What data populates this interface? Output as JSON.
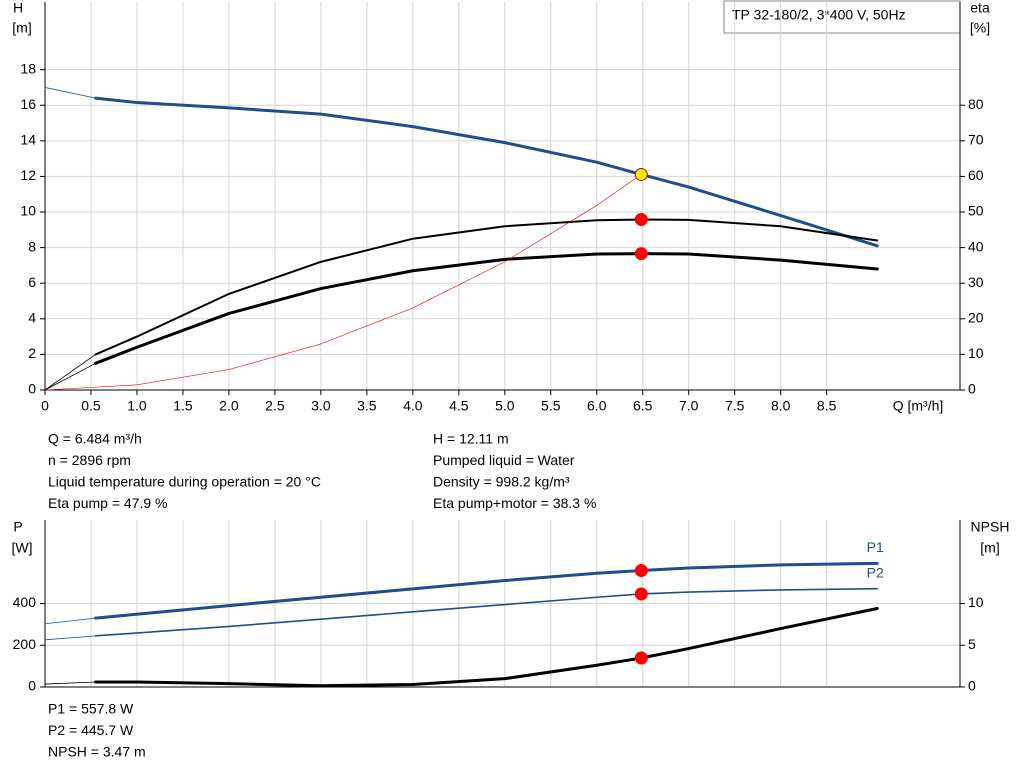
{
  "chart_data": [
    {
      "type": "line",
      "title": "TP 32-180/2, 3*400 V, 50Hz",
      "ylabel": [
        "H",
        "[m]"
      ],
      "y2label": [
        "eta",
        "[%]"
      ],
      "xlabel": "Q [m³/h]",
      "xlim": [
        0,
        9.95
      ],
      "ylim": [
        0,
        21.8
      ],
      "y2lim": [
        0,
        109
      ],
      "grid": true,
      "xticks": [
        0,
        0.5,
        {
          "value": 1,
          "label": "1.0"
        },
        1.5,
        {
          "value": 2,
          "label": "2.0"
        },
        2.5,
        {
          "value": 3,
          "label": "3.0"
        },
        3.5,
        {
          "value": 4,
          "label": "4.0"
        },
        4.5,
        {
          "value": 5,
          "label": "5.0"
        },
        5.5,
        {
          "value": 6,
          "label": "6.0"
        },
        6.5,
        {
          "value": 7,
          "label": "7.0"
        },
        7.5,
        {
          "value": 8,
          "label": "8.0"
        },
        8.5
      ],
      "yticks": [
        0,
        2,
        4,
        6,
        8,
        10,
        12,
        14,
        16,
        18
      ],
      "y2ticks": [
        0,
        10,
        20,
        30,
        40,
        50,
        60,
        70,
        80
      ],
      "series": [
        {
          "color": "#1f4e8c",
          "width": 0.8,
          "x": [
            0,
            0.55
          ],
          "values": [
            17,
            16.4
          ]
        },
        {
          "color": "#1f4e8c",
          "width": 3,
          "x": [
            0.55,
            1,
            2,
            3,
            4,
            5,
            6,
            6.484,
            7,
            8,
            9.05
          ],
          "values": [
            16.4,
            16.15,
            15.85,
            15.5,
            14.8,
            13.9,
            12.8,
            12.11,
            11.4,
            9.8,
            8.1
          ]
        },
        {
          "color": "#000000",
          "width": 0.8,
          "axis": "y2",
          "x": [
            0,
            0.55
          ],
          "values": [
            0,
            10
          ]
        },
        {
          "color": "#000000",
          "width": 2,
          "axis": "y2",
          "x": [
            0.55,
            1,
            2,
            3,
            4,
            5,
            6,
            6.484,
            7,
            8,
            9.05
          ],
          "values": [
            10,
            15,
            27,
            36,
            42.5,
            46,
            47.7,
            47.9,
            47.8,
            46,
            42
          ]
        },
        {
          "color": "#000000",
          "width": 0.8,
          "axis": "y2",
          "x": [
            0,
            0.55
          ],
          "values": [
            0,
            7.5
          ]
        },
        {
          "color": "#000000",
          "width": 3,
          "axis": "y2",
          "x": [
            0.55,
            1,
            2,
            3,
            4,
            5,
            6,
            6.484,
            7,
            8,
            9.05
          ],
          "values": [
            7.5,
            12,
            21.5,
            28.5,
            33.5,
            36.7,
            38.2,
            38.3,
            38.2,
            36.5,
            34
          ]
        },
        {
          "color": "#ff0000",
          "width": 0.6,
          "x": [
            0,
            1,
            2,
            3,
            4,
            5,
            6,
            6.484
          ],
          "values": [
            0,
            0.29,
            1.15,
            2.59,
            4.61,
            7.2,
            10.37,
            12.11
          ]
        },
        {
          "marker": true,
          "color": "#ffee00",
          "x": [
            6.484
          ],
          "values": [
            12.11
          ]
        },
        {
          "marker": true,
          "color": "#ff0000",
          "axis": "y2",
          "x": [
            6.484,
            6.484
          ],
          "values": [
            47.9,
            38.3
          ]
        }
      ]
    },
    {
      "type": "line",
      "ylabel": [
        "P",
        "[W]"
      ],
      "y2label": [
        "NPSH",
        "[m]"
      ],
      "xlim": [
        0,
        9.95
      ],
      "ylim": [
        0,
        800
      ],
      "y2lim": [
        0,
        20
      ],
      "grid": true,
      "yticks": [
        0,
        200,
        400
      ],
      "y2ticks": [
        0,
        5,
        10
      ],
      "series": [
        {
          "color": "#1f4e8c",
          "width": 0.8,
          "x": [
            0,
            0.55
          ],
          "values": [
            303,
            330
          ]
        },
        {
          "name": "P1",
          "color": "#1f4e8c",
          "width": 3,
          "x": [
            0.55,
            2,
            3,
            4,
            5,
            6,
            6.484,
            7,
            8,
            9.05
          ],
          "values": [
            330,
            390,
            430,
            470,
            510,
            545,
            557.8,
            570,
            585,
            592
          ]
        },
        {
          "color": "#1f4e8c",
          "width": 0.8,
          "x": [
            0,
            0.55
          ],
          "values": [
            226,
            245
          ]
        },
        {
          "name": "P2",
          "color": "#1f4e8c",
          "width": 1.6,
          "x": [
            0.55,
            2,
            3,
            4,
            5,
            6,
            6.484,
            7,
            8,
            9.05
          ],
          "values": [
            245,
            290,
            325,
            360,
            395,
            430,
            445.7,
            455,
            465,
            471
          ]
        },
        {
          "color": "#000000",
          "width": 0.8,
          "axis": "y2",
          "x": [
            0,
            0.55
          ],
          "values": [
            0.35,
            0.6
          ]
        },
        {
          "color": "#000000",
          "width": 3,
          "axis": "y2",
          "x": [
            0.55,
            1,
            2,
            3,
            4,
            5,
            6,
            6.484,
            7,
            8,
            9.05
          ],
          "values": [
            0.6,
            0.6,
            0.4,
            0.15,
            0.3,
            1.0,
            2.6,
            3.47,
            4.6,
            7,
            9.4
          ]
        },
        {
          "marker": true,
          "color": "#ff0000",
          "x": [
            6.484,
            6.484
          ],
          "values": [
            557.8,
            445.7
          ]
        },
        {
          "marker": true,
          "color": "#ff0000",
          "axis": "y2",
          "x": [
            6.484
          ],
          "values": [
            3.47
          ]
        }
      ]
    }
  ],
  "info": {
    "left": [
      "Q = 6.484 m³/h",
      "n = 2896 rpm",
      "Liquid temperature during operation = 20 °C",
      "Eta pump = 47.9 %"
    ],
    "right": [
      "H = 12.11 m",
      "Pumped liquid = Water",
      "Density = 998.2 kg/m³",
      "Eta pump+motor = 38.3 %"
    ]
  },
  "footer": [
    "P1 = 557.8 W",
    "P2 = 445.7 W",
    "NPSH = 3.47 m"
  ]
}
